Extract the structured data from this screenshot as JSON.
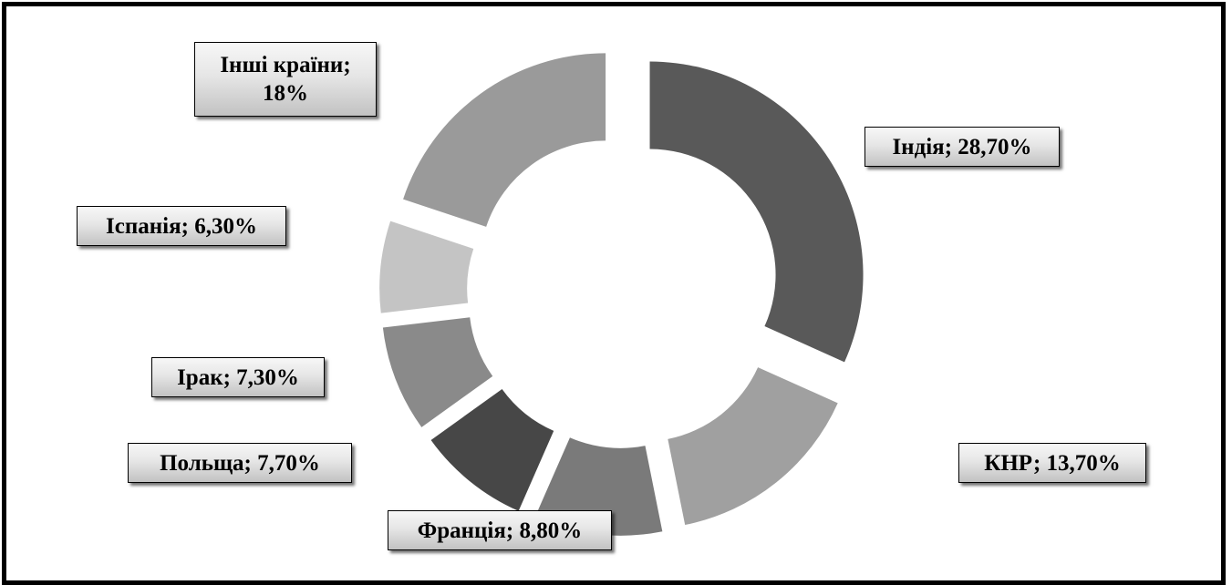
{
  "chart_data": {
    "type": "pie",
    "variant": "doughnut",
    "title": "",
    "legend": "none",
    "slices": [
      {
        "label": "Індія",
        "value": 28.7,
        "display": "Індія; 28,70%",
        "color": "#595959"
      },
      {
        "label": "КНР",
        "value": 13.7,
        "display": "КНР; 13,70%",
        "color": "#a0a0a0"
      },
      {
        "label": "Франція",
        "value": 8.8,
        "display": "Франція; 8,80%",
        "color": "#7a7a7a"
      },
      {
        "label": "Польща",
        "value": 7.7,
        "display": "Польща; 7,70%",
        "color": "#474747"
      },
      {
        "label": "Ірак",
        "value": 7.3,
        "display": "Ірак; 7,30%",
        "color": "#8a8a8a"
      },
      {
        "label": "Іспанія",
        "value": 6.3,
        "display": "Іспанія; 6,30%",
        "color": "#c4c4c4"
      },
      {
        "label": "Інші країни",
        "value": 18,
        "display": "Інші країни;",
        "display_line2": "18%",
        "color": "#9a9a9a"
      }
    ]
  }
}
